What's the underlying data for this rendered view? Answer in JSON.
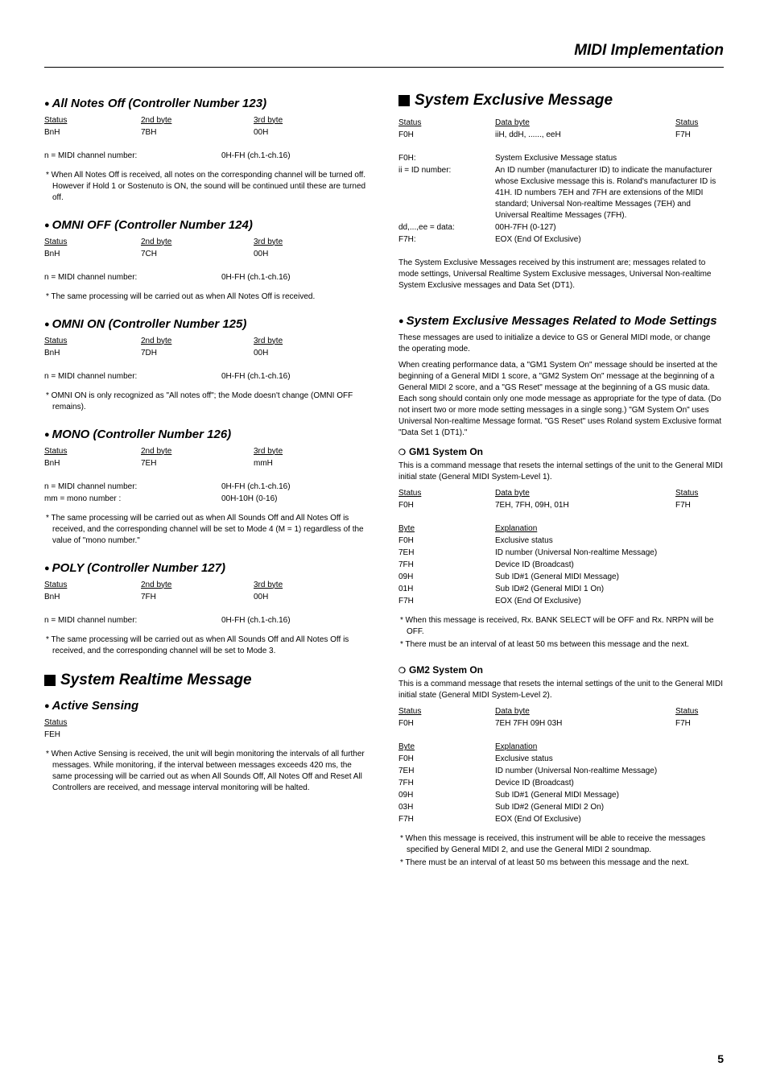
{
  "pageTitle": "MIDI Implementation",
  "pageNumber": "5",
  "left": {
    "allNotesOff": {
      "title": "All Notes Off (Controller Number 123)",
      "hdr": {
        "c1": "Status",
        "c2": "2nd byte",
        "c3": "3rd byte"
      },
      "row": {
        "c1": "BnH",
        "c2": "7BH",
        "c3": "00H"
      },
      "chan": {
        "k": "n = MIDI channel number:",
        "v": "0H-FH (ch.1-ch.16)"
      },
      "note": "* When All Notes Off is received, all notes on the corresponding channel will be turned off. However if Hold 1 or Sostenuto is ON, the sound will be continued until these are turned off."
    },
    "omniOff": {
      "title": "OMNI OFF (Controller Number 124)",
      "hdr": {
        "c1": "Status",
        "c2": "2nd byte",
        "c3": "3rd byte"
      },
      "row": {
        "c1": "BnH",
        "c2": "7CH",
        "c3": "00H"
      },
      "chan": {
        "k": "n = MIDI channel number:",
        "v": "0H-FH (ch.1-ch.16)"
      },
      "note": "* The same processing will be carried out as when All Notes Off is received."
    },
    "omniOn": {
      "title": "OMNI ON (Controller Number 125)",
      "hdr": {
        "c1": "Status",
        "c2": "2nd byte",
        "c3": "3rd byte"
      },
      "row": {
        "c1": "BnH",
        "c2": "7DH",
        "c3": "00H"
      },
      "chan": {
        "k": "n = MIDI channel number:",
        "v": "0H-FH (ch.1-ch.16)"
      },
      "note": "* OMNI ON is only recognized as \"All notes off\"; the Mode doesn't change (OMNI OFF remains)."
    },
    "mono": {
      "title": "MONO (Controller Number 126)",
      "hdr": {
        "c1": "Status",
        "c2": "2nd byte",
        "c3": "3rd byte"
      },
      "row": {
        "c1": "BnH",
        "c2": "7EH",
        "c3": "mmH"
      },
      "chan": {
        "k": "n = MIDI channel number:",
        "v": "0H-FH (ch.1-ch.16)"
      },
      "mono": {
        "k": "mm = mono number :",
        "v": "00H-10H (0-16)"
      },
      "note": "* The same processing will be carried out as when All Sounds Off and All Notes Off is received, and the corresponding channel will be set to Mode 4 (M = 1) regardless of the value of \"mono number.\""
    },
    "poly": {
      "title": "POLY (Controller Number 127)",
      "hdr": {
        "c1": "Status",
        "c2": "2nd byte",
        "c3": "3rd byte"
      },
      "row": {
        "c1": "BnH",
        "c2": "7FH",
        "c3": "00H"
      },
      "chan": {
        "k": "n = MIDI channel number:",
        "v": "0H-FH (ch.1-ch.16)"
      },
      "note": "* The same processing will be carried out as when All Sounds Off and All Notes Off is received, and the corresponding channel will be set to Mode 3."
    },
    "sysRealtime": {
      "title": "System Realtime Message",
      "activeSensing": {
        "title": "Active Sensing",
        "statusHdr": "Status",
        "statusVal": "FEH",
        "note": "* When Active Sensing is received, the unit will begin monitoring the intervals of all further messages. While monitoring, if the interval between messages exceeds 420 ms, the same processing will be carried out as when All Sounds Off, All Notes Off and Reset All Controllers are received, and message interval monitoring will be halted."
      }
    }
  },
  "right": {
    "sysEx": {
      "title": "System Exclusive Message",
      "hdr": {
        "c1": "Status",
        "c2": "Data byte",
        "c3": "Status"
      },
      "row": {
        "c1": "F0H",
        "c2": "iiH, ddH, ......, eeH",
        "c3": "F7H"
      },
      "defs": [
        {
          "k": "F0H:",
          "v": "System Exclusive Message status"
        },
        {
          "k": "ii = ID number:",
          "v": "An ID number (manufacturer ID) to indicate the manufacturer whose Exclusive message this is. Roland's manufacturer ID is 41H. ID numbers 7EH and 7FH are extensions of the MIDI standard; Universal Non-realtime Messages (7EH) and Universal Realtime Messages (7FH)."
        },
        {
          "k": "dd,...,ee = data:",
          "v": "00H-7FH (0-127)"
        },
        {
          "k": "F7H:",
          "v": "EOX (End Of Exclusive)"
        }
      ],
      "para": "The System Exclusive Messages received by this instrument are; messages related to mode settings, Universal Realtime System Exclusive messages, Universal Non-realtime System Exclusive messages and Data Set (DT1)."
    },
    "modeSettings": {
      "title": "System Exclusive Messages Related to Mode Settings",
      "p1": "These messages are used to initialize a device to GS or General MIDI mode, or change the operating mode.",
      "p2": "When creating performance data, a \"GM1 System On\" message should be inserted at the beginning of a General MIDI 1 score, a \"GM2 System On\" message at the beginning of a General MIDI 2 score, and a \"GS Reset\" message at the beginning of a GS music data. Each song should contain only one mode message as appropriate for the type of data. (Do not insert two or more mode setting messages in a single song.) \"GM System On\" uses Universal Non-realtime Message format. \"GS Reset\" uses Roland system Exclusive format \"Data Set 1 (DT1).\"",
      "gm1": {
        "title": "GM1 System On",
        "desc": "This is a command message that resets the internal settings of the unit to the General MIDI initial state (General MIDI System-Level 1).",
        "hdr": {
          "c1": "Status",
          "c2": "Data byte",
          "c3": "Status"
        },
        "row": {
          "c1": "F0H",
          "c2": "7EH, 7FH, 09H, 01H",
          "c3": "F7H"
        },
        "bytesHdr": {
          "k": "Byte",
          "v": "Explanation"
        },
        "bytes": [
          {
            "k": "F0H",
            "v": "Exclusive status"
          },
          {
            "k": "7EH",
            "v": "ID number (Universal Non-realtime Message)"
          },
          {
            "k": "7FH",
            "v": "Device ID (Broadcast)"
          },
          {
            "k": "09H",
            "v": "Sub ID#1 (General MIDI Message)"
          },
          {
            "k": "01H",
            "v": "Sub ID#2 (General MIDI 1 On)"
          },
          {
            "k": "F7H",
            "v": "EOX (End Of Exclusive)"
          }
        ],
        "n1": "* When this message is received, Rx. BANK SELECT will be OFF and Rx. NRPN will be OFF.",
        "n2": "* There must be an interval of at least 50 ms between this message and the next."
      },
      "gm2": {
        "title": "GM2 System On",
        "desc": "This is a command message that resets the internal settings of the unit to the General MIDI initial state (General MIDI System-Level 2).",
        "hdr": {
          "c1": "Status",
          "c2": "Data byte",
          "c3": "Status"
        },
        "row": {
          "c1": "F0H",
          "c2": "7EH 7FH 09H 03H",
          "c3": "F7H"
        },
        "bytesHdr": {
          "k": "Byte",
          "v": "Explanation"
        },
        "bytes": [
          {
            "k": "F0H",
            "v": "Exclusive status"
          },
          {
            "k": "7EH",
            "v": "ID number (Universal Non-realtime Message)"
          },
          {
            "k": "7FH",
            "v": "Device ID (Broadcast)"
          },
          {
            "k": "09H",
            "v": "Sub ID#1 (General MIDI Message)"
          },
          {
            "k": "03H",
            "v": "Sub ID#2 (General MIDI 2 On)"
          },
          {
            "k": "F7H",
            "v": "EOX (End Of Exclusive)"
          }
        ],
        "n1": "* When this message is received, this instrument will be able to receive the messages specified by General MIDI 2, and use the General MIDI 2 soundmap.",
        "n2": "* There must be an interval of at least 50 ms between this message and the next."
      }
    }
  }
}
